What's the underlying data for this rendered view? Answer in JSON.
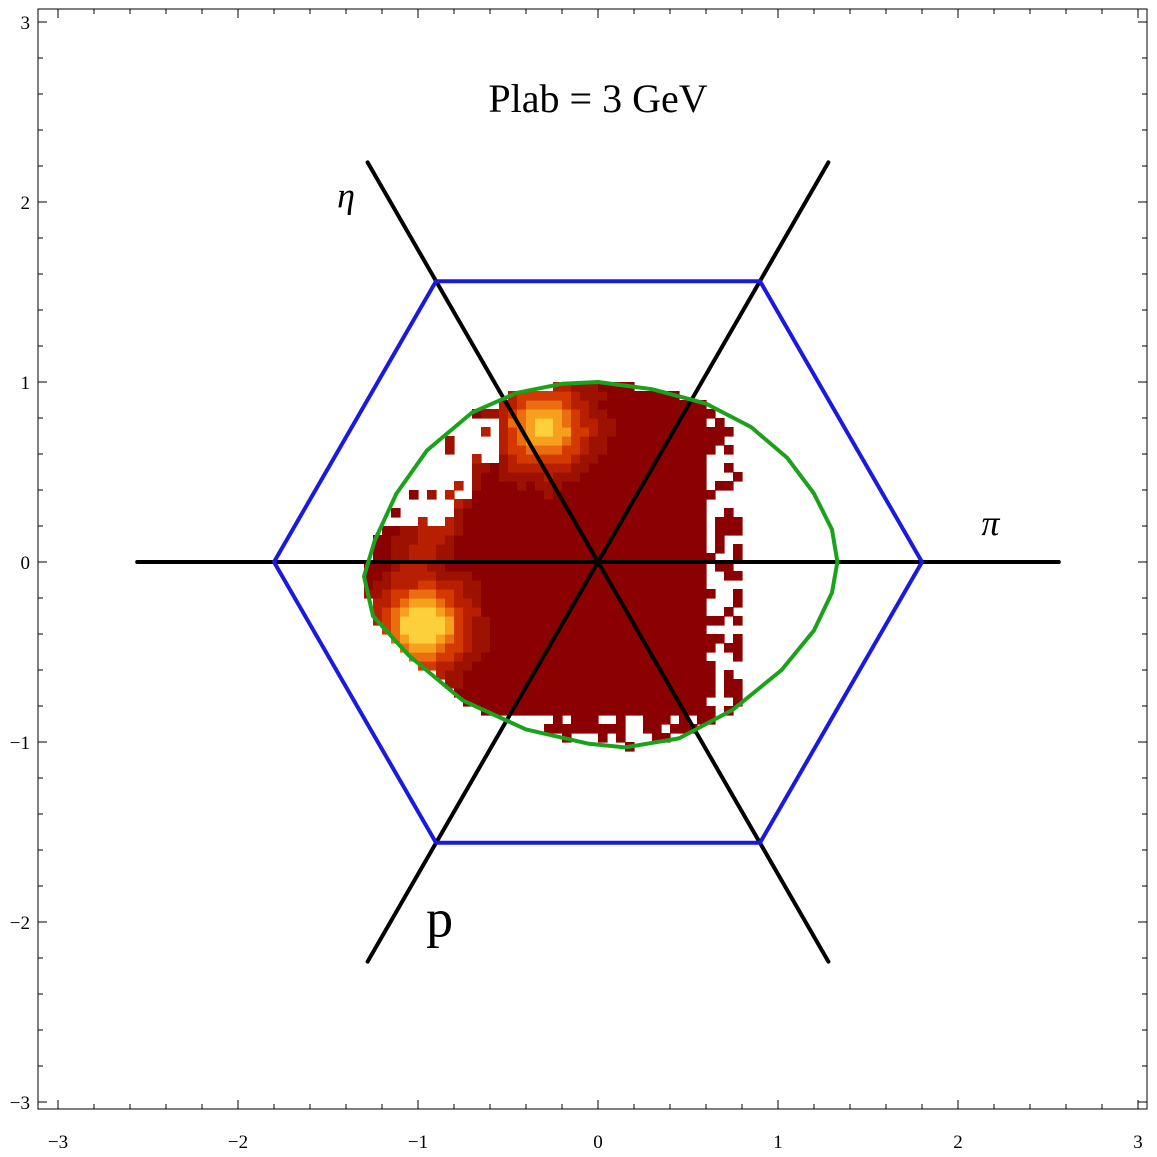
{
  "chart_data": {
    "type": "heatmap",
    "title": "Plab = 3 GeV",
    "xlim": [
      -3,
      3
    ],
    "ylim": [
      -3,
      3
    ],
    "x_ticks": [
      -3,
      -2,
      -1,
      0,
      1,
      2,
      3
    ],
    "y_ticks": [
      -3,
      -2,
      -1,
      0,
      1,
      2,
      3
    ],
    "x_tick_labels": [
      "−3",
      "−2",
      "−1",
      "0",
      "1",
      "2",
      "3"
    ],
    "y_tick_labels": [
      "−3",
      "−2",
      "−1",
      "0",
      "1",
      "2",
      "3"
    ],
    "grid": false,
    "annotations": [
      {
        "text": "η",
        "x": -1.4,
        "y": 1.97
      },
      {
        "text": "π",
        "x": 2.18,
        "y": 0.15
      },
      {
        "text": "p",
        "x": -0.88,
        "y": -2.08
      }
    ],
    "axis_lines": [
      {
        "from": [
          -2.56,
          0
        ],
        "to": [
          2.56,
          0
        ]
      },
      {
        "from": [
          -1.28,
          2.22
        ],
        "to": [
          1.28,
          -2.22
        ]
      },
      {
        "from": [
          1.28,
          2.22
        ],
        "to": [
          -1.28,
          -2.22
        ]
      }
    ],
    "blue_hexagon": [
      [
        1.8,
        0
      ],
      [
        0.9,
        1.56
      ],
      [
        -0.9,
        1.56
      ],
      [
        -1.8,
        0
      ],
      [
        -0.9,
        -1.56
      ],
      [
        0.9,
        -1.56
      ]
    ],
    "green_boundary": [
      [
        1.33,
        0
      ],
      [
        1.3,
        0.18
      ],
      [
        1.2,
        0.38
      ],
      [
        1.05,
        0.58
      ],
      [
        0.85,
        0.75
      ],
      [
        0.6,
        0.88
      ],
      [
        0.3,
        0.96
      ],
      [
        0.0,
        1.0
      ],
      [
        -0.2,
        0.99
      ],
      [
        -0.45,
        0.94
      ],
      [
        -0.7,
        0.83
      ],
      [
        -0.95,
        0.62
      ],
      [
        -1.12,
        0.38
      ],
      [
        -1.24,
        0.12
      ],
      [
        -1.3,
        -0.08
      ],
      [
        -1.25,
        -0.3
      ],
      [
        -1.05,
        -0.52
      ],
      [
        -0.75,
        -0.77
      ],
      [
        -0.4,
        -0.93
      ],
      [
        -0.05,
        -1.01
      ],
      [
        0.15,
        -1.03
      ],
      [
        0.45,
        -0.98
      ],
      [
        0.75,
        -0.82
      ],
      [
        1.02,
        -0.6
      ],
      [
        1.2,
        -0.38
      ],
      [
        1.3,
        -0.17
      ]
    ],
    "heatmap_colors": [
      "#8b0000",
      "#9c1100",
      "#b81f00",
      "#d43a00",
      "#ec6d10",
      "#f7a01e",
      "#fcd03a"
    ],
    "heatmap_bin_size": 0.05,
    "heatmap_peaks": [
      {
        "x": -0.97,
        "y": -0.35,
        "intensity": 1.0
      },
      {
        "x": -0.3,
        "y": 0.75,
        "intensity": 0.85
      }
    ]
  }
}
